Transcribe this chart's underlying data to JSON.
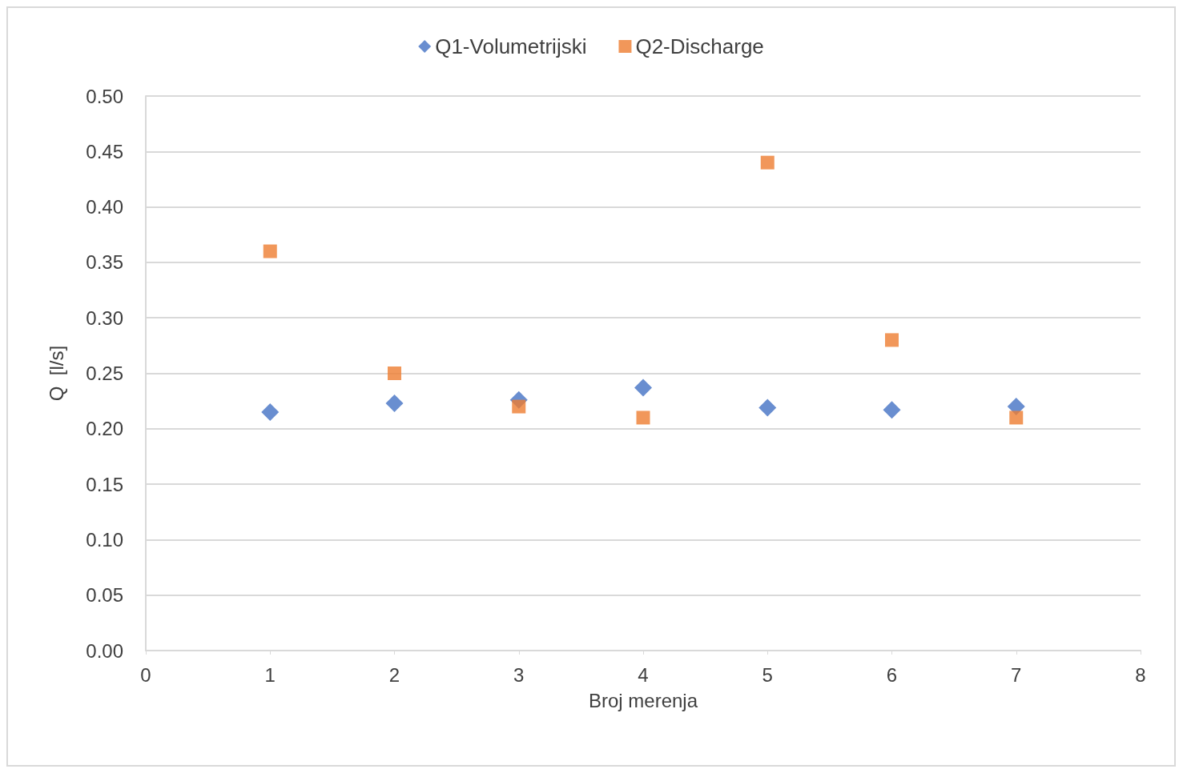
{
  "chart_data": {
    "type": "scatter",
    "xlabel": "Broj merenja",
    "ylabel": "Q  [l/s]",
    "x": [
      1,
      2,
      3,
      4,
      5,
      6,
      7
    ],
    "series": [
      {
        "name": "Q1-Volumetrijski",
        "color": "#4472c4",
        "marker": "diamond",
        "values": [
          0.215,
          0.223,
          0.226,
          0.237,
          0.219,
          0.217,
          0.22
        ]
      },
      {
        "name": "Q2-Discharge",
        "color": "#ed7d31",
        "marker": "square",
        "values": [
          0.36,
          0.25,
          0.22,
          0.21,
          0.44,
          0.28,
          0.21
        ]
      }
    ],
    "xlim": [
      0,
      8
    ],
    "xticks": [
      0,
      1,
      2,
      3,
      4,
      5,
      6,
      7,
      8
    ],
    "ylim": [
      0,
      0.5
    ],
    "yticks": [
      {
        "value": 0,
        "label": "0.00"
      },
      {
        "value": 0.05,
        "label": "0.05"
      },
      {
        "value": 0.1,
        "label": "0.10"
      },
      {
        "value": 0.15,
        "label": "0.15"
      },
      {
        "value": 0.2,
        "label": "0.20"
      },
      {
        "value": 0.25,
        "label": "0.25"
      },
      {
        "value": 0.3,
        "label": "0.30"
      },
      {
        "value": 0.35,
        "label": "0.35"
      },
      {
        "value": 0.4,
        "label": "0.40"
      },
      {
        "value": 0.45,
        "label": "0.45"
      },
      {
        "value": 0.5,
        "label": "0.50"
      }
    ],
    "grid": "y",
    "legend": "top"
  }
}
